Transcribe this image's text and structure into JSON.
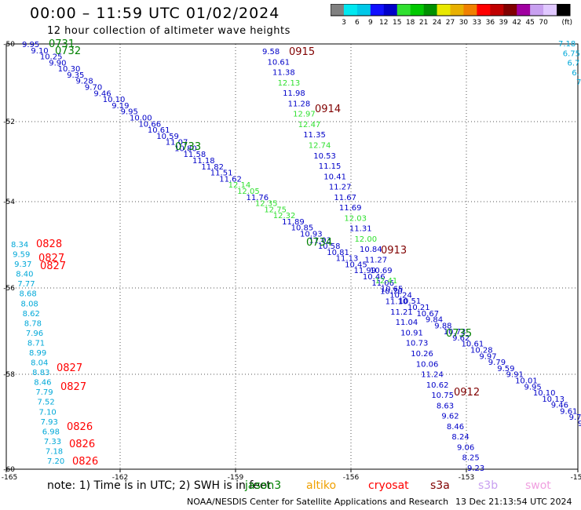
{
  "title": "00:00 – 11:59 UTC 01/02/2024",
  "subtitle": "12 hour collection of altimeter wave heights",
  "colorbar": {
    "unit": "(ft)",
    "ticks": [
      "3",
      "6",
      "9",
      "12",
      "15",
      "18",
      "21",
      "24",
      "27",
      "30",
      "33",
      "36",
      "39",
      "42",
      "45",
      "70"
    ],
    "colors": [
      "#808080",
      "#00e8f0",
      "#00c8e8",
      "#1010ff",
      "#0000c8",
      "#30e030",
      "#00c800",
      "#009000",
      "#e8e800",
      "#e8b000",
      "#f08000",
      "#ff0000",
      "#c00000",
      "#800000",
      "#a000a0",
      "#c8a0f0",
      "#e0c8ff",
      "#000000"
    ]
  },
  "map": {
    "lon_ticks": [
      "-165",
      "-162",
      "-159",
      "-156",
      "-153",
      "-15"
    ],
    "lat_ticks": [
      "-50",
      "-52",
      "-54",
      "-56",
      "-58",
      "-60"
    ]
  },
  "passes": [
    {
      "label": "0731",
      "color": "#008000"
    },
    {
      "label": "0732",
      "color": "#008000"
    },
    {
      "label": "0733",
      "color": "#008000"
    },
    {
      "label": "0734",
      "color": "#008000"
    },
    {
      "label": "0735",
      "color": "#008000"
    },
    {
      "label": "0915",
      "color": "#800000"
    },
    {
      "label": "0914",
      "color": "#800000"
    },
    {
      "label": "0913",
      "color": "#800000"
    },
    {
      "label": "0912",
      "color": "#800000"
    },
    {
      "label": "0828",
      "color": "#ff0000"
    },
    {
      "label": "0827",
      "color": "#ff0000"
    },
    {
      "label": "0827",
      "color": "#ff0000"
    },
    {
      "label": "0827",
      "color": "#ff0000"
    },
    {
      "label": "0827",
      "color": "#ff0000"
    },
    {
      "label": "0826",
      "color": "#ff0000"
    },
    {
      "label": "0826",
      "color": "#ff0000"
    },
    {
      "label": "0826",
      "color": "#ff0000"
    }
  ],
  "track_a": [
    "9.95",
    "9.10",
    "10.25",
    "9.90",
    "10.30",
    "9.35",
    "9.28",
    "9.70",
    "9.46",
    "10.10",
    "9.19",
    "9.95",
    "10.00",
    "10.66",
    "10.61",
    "10.59",
    "11.07",
    "10.80",
    "11.58",
    "11.18",
    "11.82",
    "11.51",
    "11.62",
    "12.14",
    "12.05",
    "11.76",
    "12.35",
    "12.75",
    "12.32",
    "11.89",
    "10.85",
    "10.93",
    "11.03",
    "10.58",
    "10.81",
    "11.13",
    "10.45",
    "11.99",
    "10.46",
    "11.06",
    "10.65",
    "10.24",
    "10.51",
    "10.21",
    "10.67",
    "9.84",
    "9.88",
    "10.73",
    "9.62",
    "10.61",
    "10.28",
    "9.97",
    "9.79",
    "9.59",
    "9.91",
    "10.01",
    "9.95",
    "10.10",
    "10.13",
    "9.46",
    "9.61",
    "9.7",
    "9."
  ],
  "track_b": [
    "9.58",
    "10.61",
    "11.38",
    "12.13",
    "11.98",
    "11.28",
    "12.97",
    "12.47",
    "11.35",
    "12.74",
    "10.53",
    "11.15",
    "10.41",
    "11.27",
    "11.67",
    "11.69",
    "12.03",
    "11.31",
    "12.00",
    "10.84",
    "11.27",
    "10.69",
    "12.41",
    "10.70",
    "11.10",
    "11.21",
    "11.04",
    "10.91",
    "10.73",
    "10.26",
    "10.06",
    "11.24",
    "10.62",
    "10.75",
    "8.63",
    "9.62",
    "8.46",
    "8.24",
    "9.06",
    "8.25",
    "9.23"
  ],
  "track_c": [
    "8.34",
    "9.59",
    "9.37",
    "8.40",
    "7.77",
    "8.68",
    "8.08",
    "8.62",
    "8.78",
    "7.96",
    "8.71",
    "8.99",
    "8.04",
    "8.83",
    "8.46",
    "7.79",
    "7.52",
    "7.10",
    "7.93",
    "6.98",
    "7.33",
    "7.18",
    "7.20"
  ],
  "track_d": [
    "7.18",
    "6.75",
    "6.7",
    "6.",
    "7"
  ],
  "note": "note:  1) Time is in UTC; 2) SWH is in feet",
  "satellites": [
    {
      "name": "jason3",
      "color": "#008000"
    },
    {
      "name": "altiko",
      "color": "#f0a000"
    },
    {
      "name": "cryosat",
      "color": "#ff0000"
    },
    {
      "name": "s3a",
      "color": "#800000"
    },
    {
      "name": "s3b",
      "color": "#c8a0f0"
    },
    {
      "name": "swot",
      "color": "#f0a0e0"
    }
  ],
  "credit": "NOAA/NESDIS Center for Satellite Applications and Research",
  "timestamp": "13 Dec 21:13:54 UTC 2024"
}
